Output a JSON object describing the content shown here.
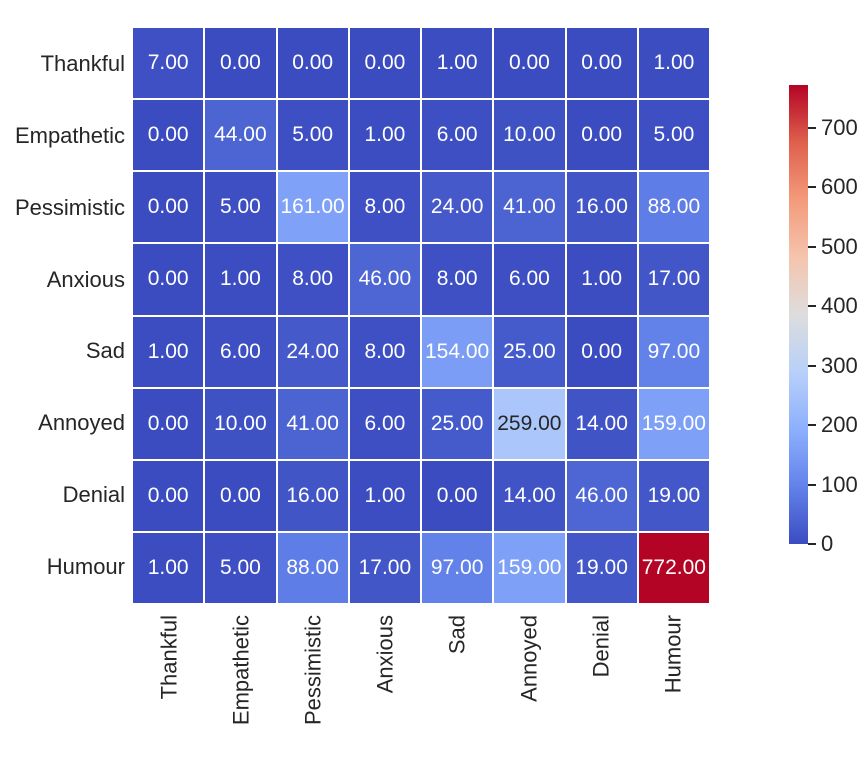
{
  "chart_data": {
    "type": "heatmap",
    "title": "",
    "categories": [
      "Thankful",
      "Empathetic",
      "Pessimistic",
      "Anxious",
      "Sad",
      "Annoyed",
      "Denial",
      "Humour"
    ],
    "matrix": [
      [
        7,
        0,
        0,
        0,
        1,
        0,
        0,
        1
      ],
      [
        0,
        44,
        5,
        1,
        6,
        10,
        0,
        5
      ],
      [
        0,
        5,
        161,
        8,
        24,
        41,
        16,
        88
      ],
      [
        0,
        1,
        8,
        46,
        8,
        6,
        1,
        17
      ],
      [
        1,
        6,
        24,
        8,
        154,
        25,
        0,
        97
      ],
      [
        0,
        10,
        41,
        6,
        25,
        259,
        14,
        159
      ],
      [
        0,
        0,
        16,
        1,
        0,
        14,
        46,
        19
      ],
      [
        1,
        5,
        88,
        17,
        97,
        159,
        19,
        772
      ]
    ],
    "value_format_decimals": 2,
    "vmin": 0,
    "vmax": 772,
    "colormap": "coolwarm",
    "colormap_anchors": [
      "#3B4CC0",
      "#6282EA",
      "#8DB0FE",
      "#B8D0F9",
      "#DDDDDD",
      "#F5C4AD",
      "#F49A7B",
      "#DE604D",
      "#B40426"
    ],
    "annotation_light_color": "#FFFFFF",
    "annotation_dark_color": "#262626",
    "luminance_threshold": 0.408,
    "grid_gap_color": "#FFFFFF",
    "colorbar": {
      "ticks": [
        0,
        100,
        200,
        300,
        400,
        500,
        600,
        700
      ],
      "position": "right"
    },
    "legend": "none",
    "grid": "off",
    "xlabel": "",
    "ylabel": ""
  }
}
